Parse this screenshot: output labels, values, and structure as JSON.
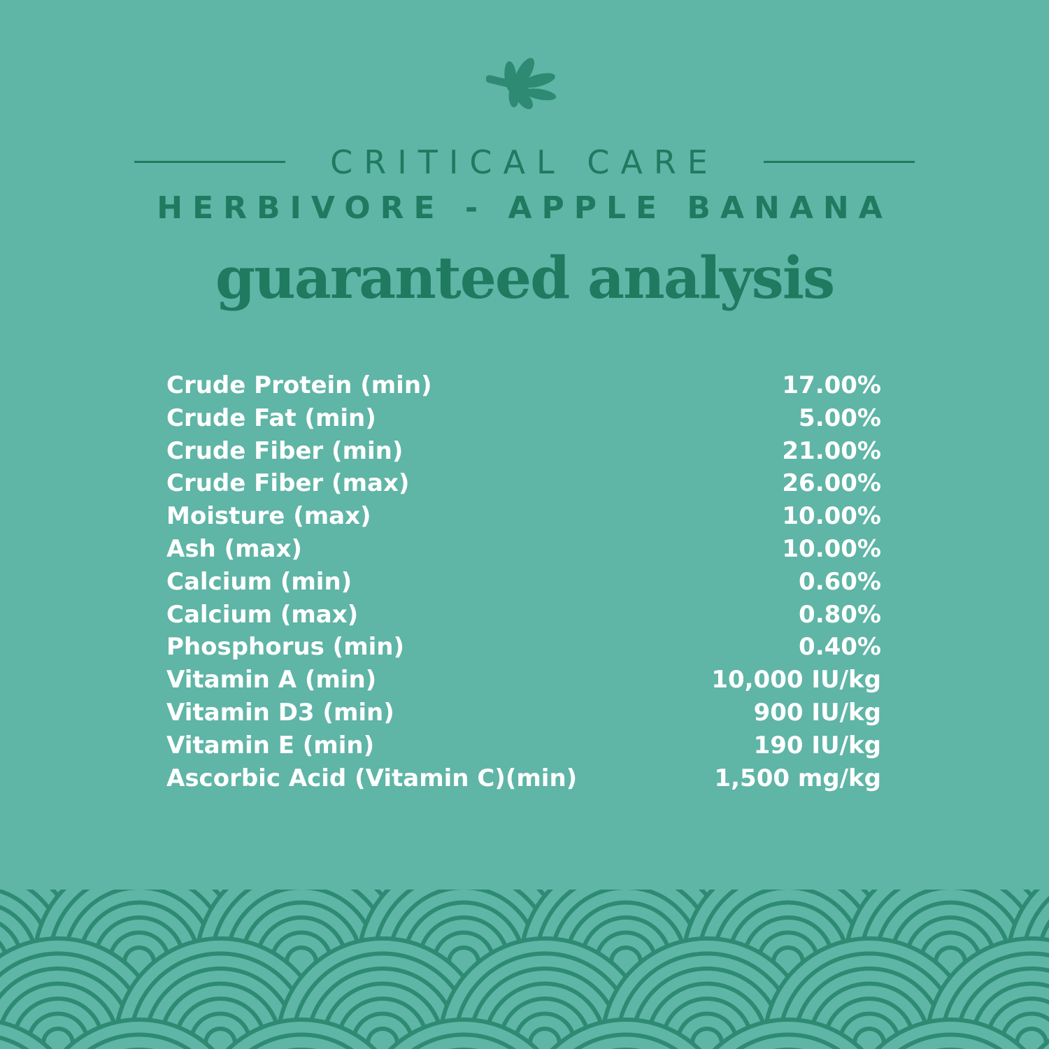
{
  "colors": {
    "background": "#5fb5a6",
    "accent": "#1f7a60",
    "pattern_line": "#2e8a72",
    "text_light": "#ffffff"
  },
  "logo": {
    "icon": "leaf-icon"
  },
  "brand": "CRITICAL CARE",
  "product": "HERBIVORE - APPLE BANANA",
  "heading": "guaranteed analysis",
  "rows": [
    {
      "label": "Crude Protein (min)",
      "value": "17.00%"
    },
    {
      "label": "Crude Fat (min)",
      "value": "5.00%"
    },
    {
      "label": "Crude Fiber (min)",
      "value": "21.00%"
    },
    {
      "label": "Crude Fiber (max)",
      "value": "26.00%"
    },
    {
      "label": "Moisture (max)",
      "value": "10.00%"
    },
    {
      "label": "Ash (max)",
      "value": "10.00%"
    },
    {
      "label": "Calcium (min)",
      "value": "0.60%"
    },
    {
      "label": "Calcium (max)",
      "value": "0.80%"
    },
    {
      "label": "Phosphorus (min)",
      "value": "0.40%"
    },
    {
      "label": "Vitamin A (min)",
      "value": "10,000 IU/kg"
    },
    {
      "label": "Vitamin D3 (min)",
      "value": "900 IU/kg"
    },
    {
      "label": "Vitamin E (min)",
      "value": "190 IU/kg"
    },
    {
      "label": "Ascorbic Acid (Vitamin C)(min)",
      "value": "1,500 mg/kg"
    }
  ]
}
